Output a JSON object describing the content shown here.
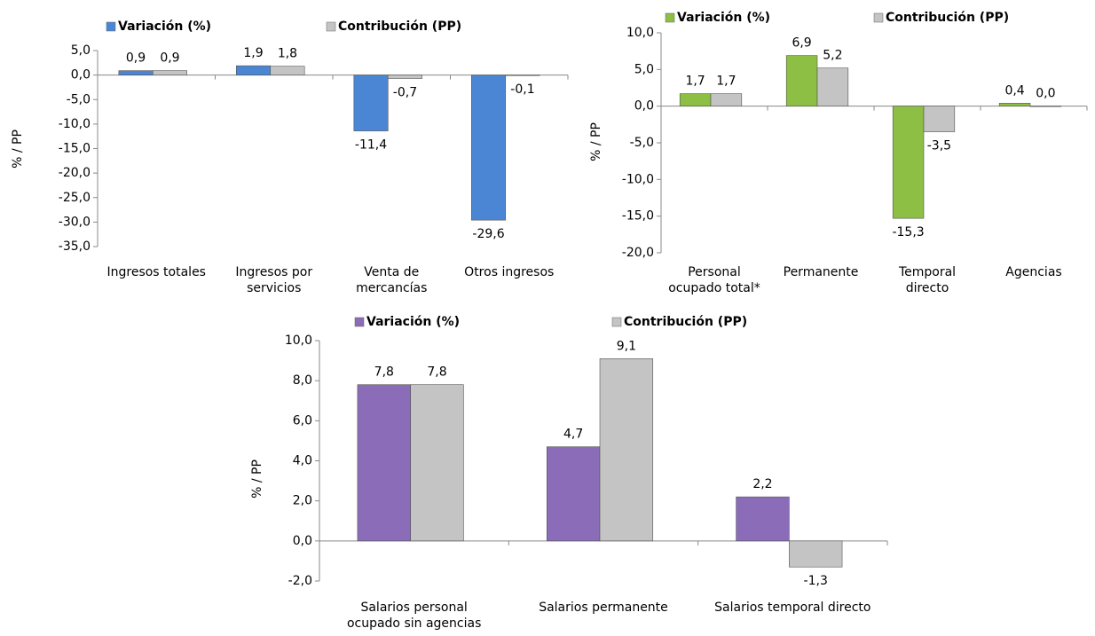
{
  "chart_data": [
    {
      "type": "bar",
      "ylabel": "% / PP",
      "categories": [
        "Ingresos totales",
        "Ingresos por servicios",
        "Venta de mercancías",
        "Otros ingresos"
      ],
      "series": [
        {
          "name": "Variación (%)",
          "color": "#4a86d4",
          "values": [
            0.9,
            1.9,
            -11.4,
            -29.6
          ],
          "value_labels": [
            "0,9",
            "1,9",
            "-11,4",
            "-29,6"
          ]
        },
        {
          "name": "Contribución (PP)",
          "color": "#c4c4c4",
          "values": [
            0.9,
            1.8,
            -0.7,
            -0.1
          ],
          "value_labels": [
            "0,9",
            "1,8",
            "-0,7",
            "-0,1"
          ]
        }
      ],
      "ylim": [
        -35,
        5
      ],
      "yticks": [
        {
          "value": 5,
          "label": "5,0"
        },
        {
          "value": 0,
          "label": "0,0"
        },
        {
          "value": -5,
          "label": "-5,0"
        },
        {
          "value": -10,
          "label": "-10,0"
        },
        {
          "value": -15,
          "label": "-15,0"
        },
        {
          "value": -20,
          "label": "-20,0"
        },
        {
          "value": -25,
          "label": "-25,0"
        },
        {
          "value": -30,
          "label": "-30,0"
        },
        {
          "value": -35,
          "label": "-35,0"
        }
      ]
    },
    {
      "type": "bar",
      "ylabel": "% / PP",
      "categories": [
        "Personal ocupado total*",
        "Permanente",
        "Temporal directo",
        "Agencias"
      ],
      "series": [
        {
          "name": "Variación (%)",
          "color": "#8cbf44",
          "values": [
            1.7,
            6.9,
            -15.3,
            0.4
          ],
          "value_labels": [
            "1,7",
            "6,9",
            "-15,3",
            "0,4"
          ]
        },
        {
          "name": "Contribución (PP)",
          "color": "#c4c4c4",
          "values": [
            1.7,
            5.2,
            -3.5,
            0.0
          ],
          "value_labels": [
            "1,7",
            "5,2",
            "-3,5",
            "0,0"
          ]
        }
      ],
      "ylim": [
        -20,
        10
      ],
      "yticks": [
        {
          "value": 10,
          "label": "10,0"
        },
        {
          "value": 5,
          "label": "5,0"
        },
        {
          "value": 0,
          "label": "0,0"
        },
        {
          "value": -5,
          "label": "-5,0"
        },
        {
          "value": -10,
          "label": "-10,0"
        },
        {
          "value": -15,
          "label": "-15,0"
        },
        {
          "value": -20,
          "label": "-20,0"
        }
      ]
    },
    {
      "type": "bar",
      "ylabel": "% / PP",
      "categories": [
        "Salarios personal ocupado sin agencias",
        "Salarios permanente",
        "Salarios temporal directo"
      ],
      "series": [
        {
          "name": "Variación (%)",
          "color": "#8a6cb8",
          "values": [
            7.8,
            4.7,
            2.2
          ],
          "value_labels": [
            "7,8",
            "4,7",
            "2,2"
          ]
        },
        {
          "name": "Contribución (PP)",
          "color": "#c4c4c4",
          "values": [
            7.8,
            9.1,
            -1.3
          ],
          "value_labels": [
            "7,8",
            "9,1",
            "-1,3"
          ]
        }
      ],
      "ylim": [
        -2,
        10
      ],
      "yticks": [
        {
          "value": 10,
          "label": "10,0"
        },
        {
          "value": 8,
          "label": "8,0"
        },
        {
          "value": 6,
          "label": "6,0"
        },
        {
          "value": 4,
          "label": "4,0"
        },
        {
          "value": 2,
          "label": "2,0"
        },
        {
          "value": 0,
          "label": "0,0"
        },
        {
          "value": -2,
          "label": "-2,0"
        }
      ]
    }
  ]
}
